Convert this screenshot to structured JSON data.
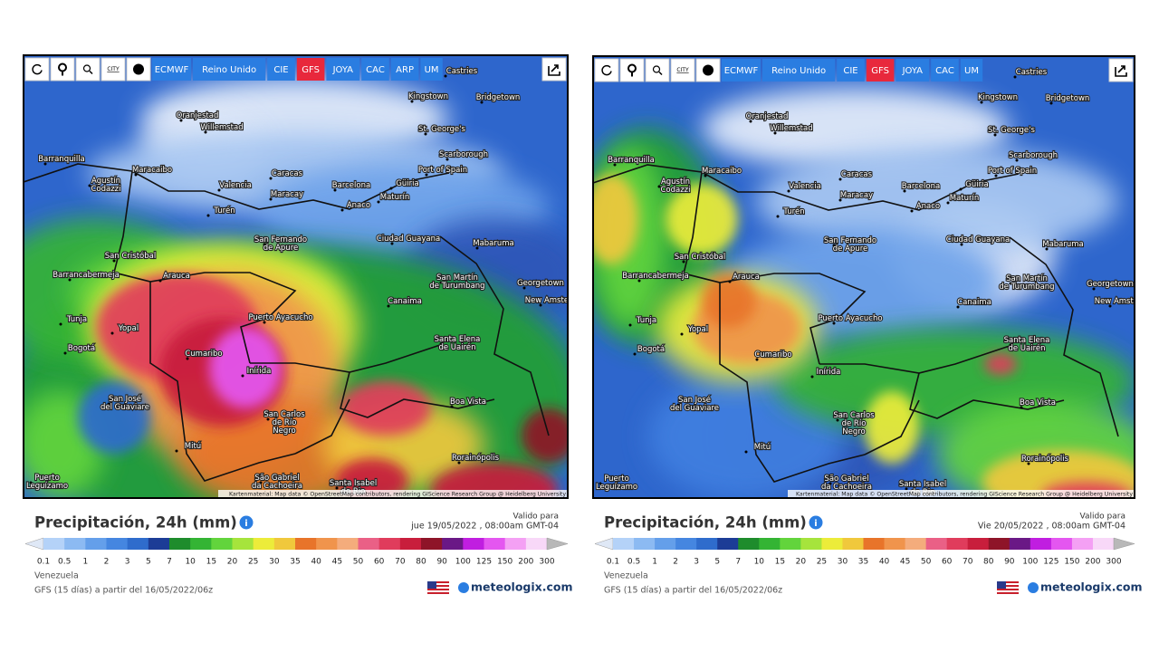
{
  "panels": [
    {
      "city_icon": "CITY",
      "toolbar": [
        "ECMWF",
        "Reino Unido",
        "CIE",
        "GFS",
        "JOYA",
        "CAC",
        "ARP",
        "UM"
      ],
      "active": "GFS",
      "cities": [
        [
          "Castries"
        ],
        [
          "Kingstown"
        ],
        [
          "Bridgetown"
        ],
        [
          "Oranjestad"
        ],
        [
          "Willemstad"
        ],
        [
          "St. George's"
        ],
        [
          "Barranquilla"
        ],
        [
          "Maracaibo"
        ],
        [
          "Caracas"
        ],
        [
          "Scarborough"
        ],
        [
          "Port of Spain"
        ],
        [
          "Agustín",
          "Codazzi"
        ],
        [
          "Valencia"
        ],
        [
          "Maracay"
        ],
        [
          "Barcelona"
        ],
        [
          "Güiria"
        ],
        [
          "Maturín"
        ],
        [
          "Anaco"
        ],
        [
          "Turén"
        ],
        [
          "Ciudad Guayana"
        ],
        [
          "San Cristóbal"
        ],
        [
          "San Fernando",
          "de Apure"
        ],
        [
          "Mabaruma"
        ],
        [
          "Arauca"
        ],
        [
          "Barrancabermeja"
        ],
        [
          "San Martín",
          "de Turumbang"
        ],
        [
          "Georgetown"
        ],
        [
          "New Amsterdam"
        ],
        [
          "Canaima"
        ],
        [
          "Tunja"
        ],
        [
          "Yopal"
        ],
        [
          "Puerto Ayacucho"
        ],
        [
          "Bogotá"
        ],
        [
          "Cumaribo"
        ],
        [
          "Santa Elena",
          "de Uairén"
        ],
        [
          "Inírida"
        ],
        [
          "Boa Vista"
        ],
        [
          "San José",
          "del Guaviare"
        ],
        [
          "San Carlos",
          "de Río",
          "Negro"
        ],
        [
          "Mitú"
        ],
        [
          "Rorainópolis"
        ],
        [
          "São Gabriel",
          "da Cachoeira"
        ],
        [
          "Santa Isabel",
          "do Rio"
        ],
        [
          "Puerto",
          "Leguízamo"
        ]
      ],
      "attribution": "Kartenmaterial: Map data © OpenStreetMap contributors, rendering GIScience Research Group @ Heidelberg University",
      "title": "Precipitación, 24h (mm)",
      "valid_label": "Valido para",
      "valid_time": "jue 19/05/2022 , 08:00am GMT-04",
      "region": "Venezuela",
      "model": "GFS (15 días) a partir del 16/05/2022/06z",
      "brand": "meteologix.com"
    },
    {
      "city_icon": "CITY",
      "toolbar": [
        "ECMWF",
        "Reino Unido",
        "CIE",
        "GFS",
        "JOYA",
        "CAC",
        "UM"
      ],
      "active": "GFS",
      "cities": [
        [
          "Castries"
        ],
        [
          "Kingstown"
        ],
        [
          "Bridgetown"
        ],
        [
          "Oranjestad"
        ],
        [
          "Willemstad"
        ],
        [
          "St. George's"
        ],
        [
          "Barranquilla"
        ],
        [
          "Maracaibo"
        ],
        [
          "Caracas"
        ],
        [
          "Scarborough"
        ],
        [
          "Port of Spain"
        ],
        [
          "Agustín",
          "Codazzi"
        ],
        [
          "Valencia"
        ],
        [
          "Maracay"
        ],
        [
          "Barcelona"
        ],
        [
          "Güiria"
        ],
        [
          "Maturín"
        ],
        [
          "Anaco"
        ],
        [
          "Turén"
        ],
        [
          "Ciudad Guayana"
        ],
        [
          "San Cristóbal"
        ],
        [
          "San Fernando",
          "de Apure"
        ],
        [
          "Mabaruma"
        ],
        [
          "Arauca"
        ],
        [
          "Barrancabermeja"
        ],
        [
          "San Martín",
          "de Turumbang"
        ],
        [
          "Georgetown"
        ],
        [
          "New Amsterdam"
        ],
        [
          "Canaima"
        ],
        [
          "Tunja"
        ],
        [
          "Yopal"
        ],
        [
          "Puerto Ayacucho"
        ],
        [
          "Bogotá"
        ],
        [
          "Cumaribo"
        ],
        [
          "Santa Elena",
          "de Uairén"
        ],
        [
          "Inírida"
        ],
        [
          "Boa Vista"
        ],
        [
          "San José",
          "del Guaviare"
        ],
        [
          "San Carlos",
          "de Río",
          "Negro"
        ],
        [
          "Mitú"
        ],
        [
          "Rorainópolis"
        ],
        [
          "São Gabriel",
          "da Cachoeira"
        ],
        [
          "Santa Isabel",
          "do Rio"
        ],
        [
          "Puerto",
          "Leguízamo"
        ]
      ],
      "attribution": "Kartenmaterial: Map data © OpenStreetMap contributors, rendering GIScience Research Group @ Heidelberg University",
      "title": "Precipitación, 24h (mm)",
      "valid_label": "Valido para",
      "valid_time": "Vie 20/05/2022 , 08:00am GMT-04",
      "region": "Venezuela",
      "model": "GFS (15 días) a partir del 16/05/2022/06z",
      "brand": "meteologix.com"
    }
  ],
  "legend": [
    0.1,
    0.5,
    1,
    2,
    3,
    5,
    7,
    10,
    15,
    20,
    25,
    30,
    35,
    40,
    45,
    50,
    60,
    70,
    80,
    90,
    100,
    125,
    150,
    200,
    300
  ],
  "legend_colors": [
    "#b4d2f8",
    "#8cbaf2",
    "#649fea",
    "#4586e0",
    "#2f6ccc",
    "#1c3c96",
    "#1e8c2c",
    "#34b434",
    "#62d43c",
    "#a6e43c",
    "#ecec3a",
    "#f0c83c",
    "#e8742a",
    "#f0944c",
    "#f4ac7c",
    "#ea6086",
    "#e03c5c",
    "#c81e3c",
    "#8e1428",
    "#6a1886",
    "#c01ee0",
    "#e456f0",
    "#f4a0f4",
    "#f8d8f8"
  ]
}
